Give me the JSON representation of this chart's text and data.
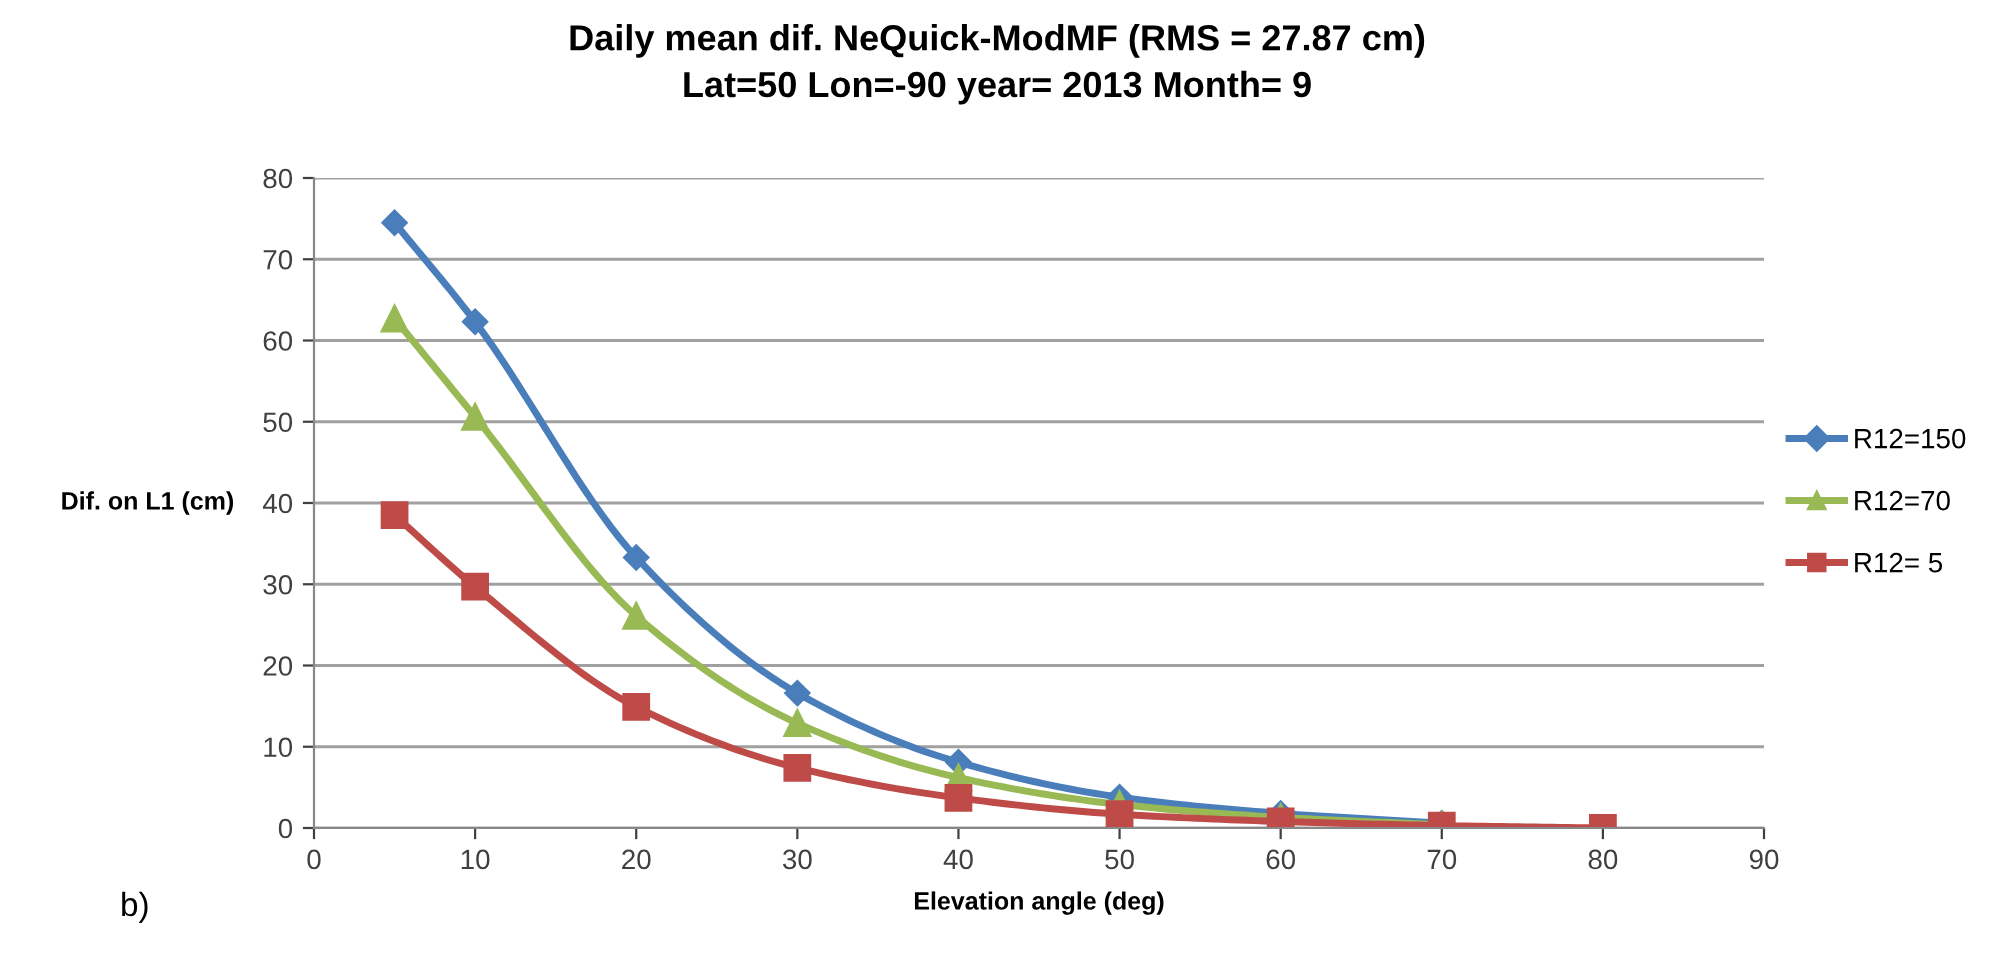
{
  "chart_data": {
    "type": "line",
    "title": "Daily mean dif. NeQuick-ModMF (RMS = 27.87 cm)\nLat=50 Lon=-90 year= 2013 Month= 9",
    "xlabel": "Elevation angle (deg)",
    "ylabel": "Dif. on L1 (cm)",
    "annotations": [
      "b)"
    ],
    "x": [
      5,
      10,
      20,
      30,
      40,
      50,
      60,
      70,
      80
    ],
    "series": [
      {
        "name": "R12=150",
        "color": "#4a7ebb",
        "marker": "diamond",
        "x": [
          5,
          10,
          20,
          30,
          40,
          50,
          60,
          70
        ],
        "values": [
          74.5,
          62.3,
          33.3,
          16.6,
          8.1,
          3.8,
          1.8,
          0.6
        ]
      },
      {
        "name": "R12=70",
        "color": "#98b954",
        "marker": "triangle",
        "x": [
          5,
          10,
          20,
          30,
          40,
          50,
          60,
          70
        ],
        "values": [
          62.7,
          50.6,
          26.1,
          12.9,
          6.2,
          2.9,
          1.3,
          0.4
        ]
      },
      {
        "name": "R12= 5",
        "color": "#be4b48",
        "marker": "square",
        "values": [
          38.5,
          29.7,
          14.9,
          7.4,
          3.7,
          1.7,
          0.8,
          0.3,
          0.0
        ]
      }
    ],
    "xlim": [
      0,
      90
    ],
    "xticks": [
      0,
      10,
      20,
      30,
      40,
      50,
      60,
      70,
      80,
      90
    ],
    "ylim": [
      0,
      80
    ],
    "yticks": [
      0,
      10,
      20,
      30,
      40,
      50,
      60,
      70,
      80
    ],
    "grid": "y",
    "legend": "right",
    "line_style": "solid"
  }
}
